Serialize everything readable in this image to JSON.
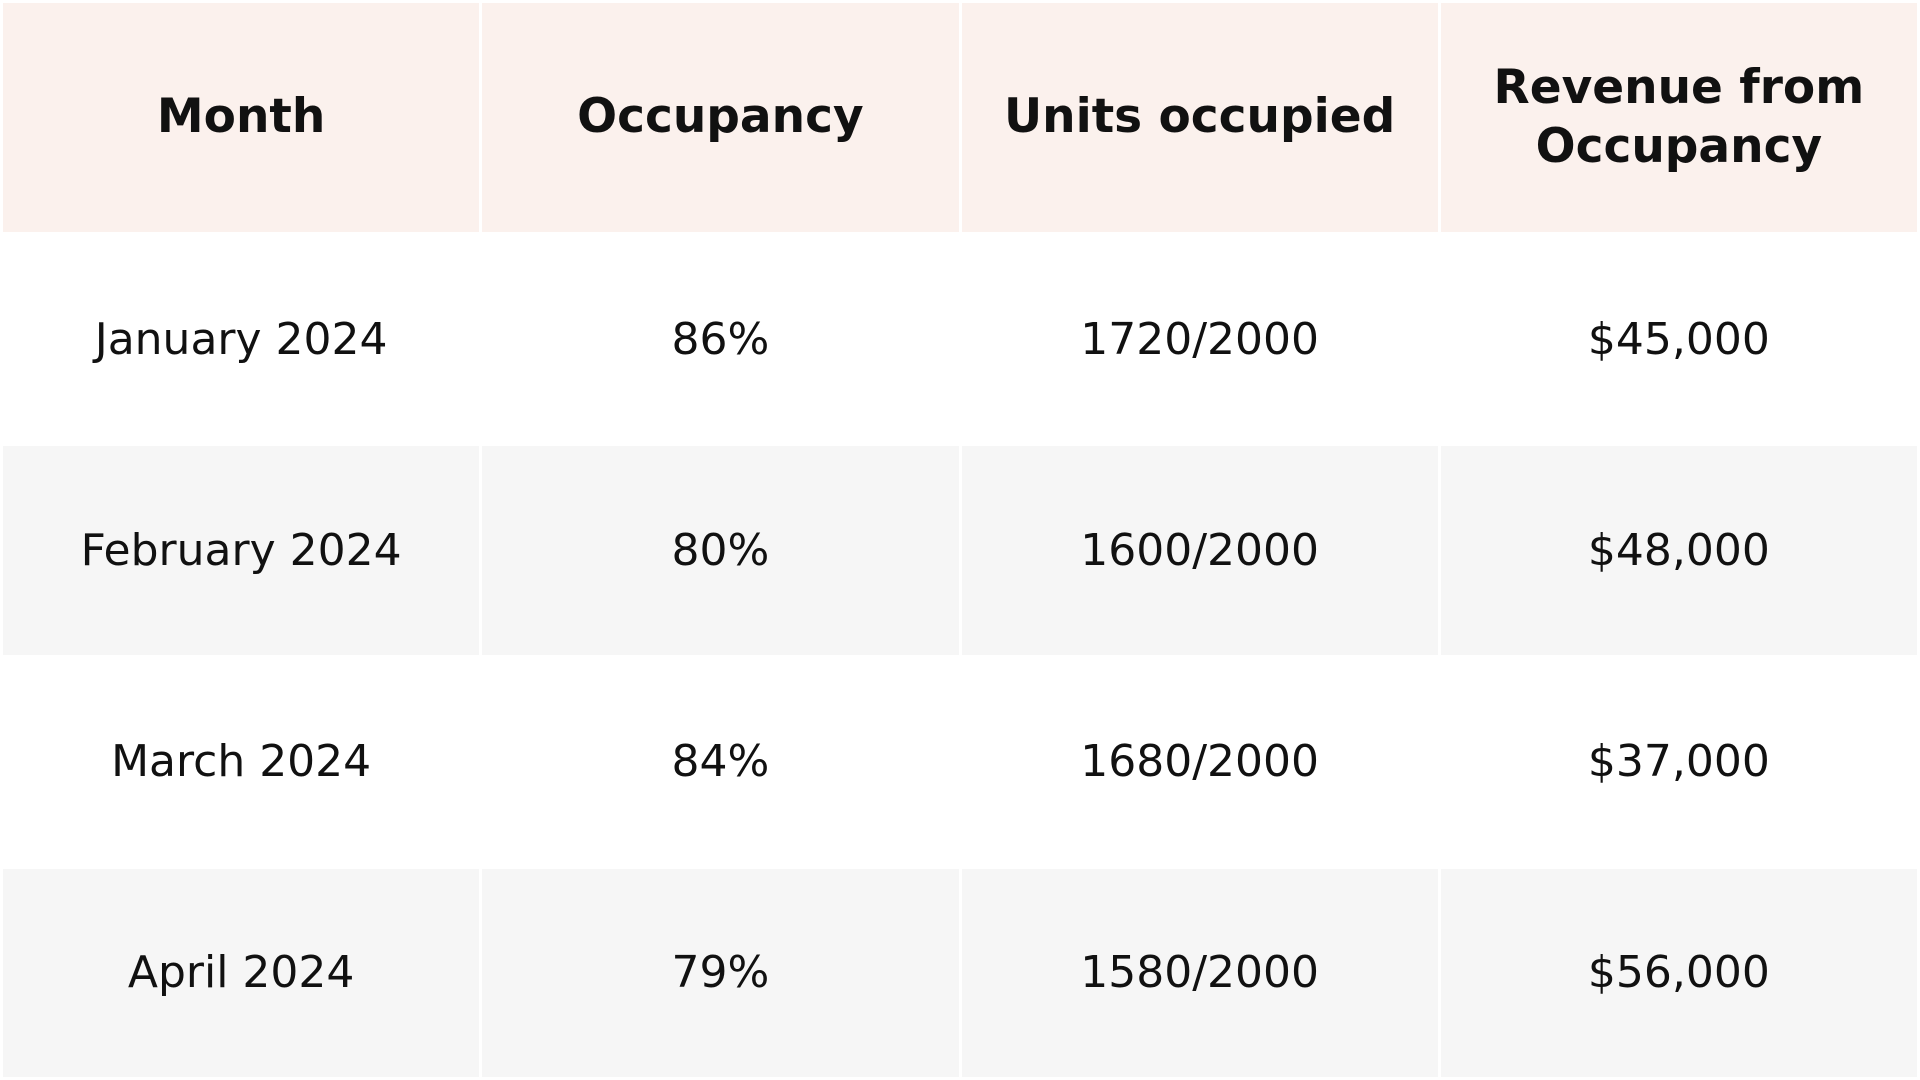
{
  "table": {
    "header": [
      "Month",
      "Occupancy",
      "Units occupied",
      "Revenue from Occupancy"
    ],
    "rows": [
      [
        "January 2024",
        "86%",
        "1720/2000",
        "$45,000"
      ],
      [
        "February 2024",
        "80%",
        "1600/2000",
        "$48,000"
      ],
      [
        "March 2024",
        "84%",
        "1680/2000",
        "$37,000"
      ],
      [
        "April 2024",
        "79%",
        "1580/2000",
        "$56,000"
      ]
    ]
  }
}
